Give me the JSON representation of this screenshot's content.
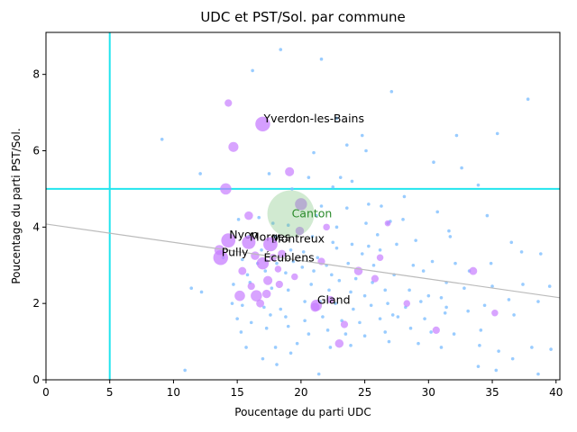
{
  "chart_data": {
    "type": "scatter",
    "title": "UDC et PST/Sol. par commune",
    "xlabel": "Poucentage du parti UDC",
    "ylabel": "Poucentage du parti PST/Sol.",
    "xlim": [
      0,
      40.3
    ],
    "ylim": [
      0,
      9.1
    ],
    "xticks": [
      0,
      5,
      10,
      15,
      20,
      25,
      30,
      35,
      40
    ],
    "yticks": [
      0,
      2,
      4,
      6,
      8
    ],
    "grid": false,
    "reference_lines": {
      "vertical_x": 5,
      "horizontal_y": 5,
      "color": "#22e5ee"
    },
    "regression_line": {
      "x": [
        0,
        40.3
      ],
      "y": [
        4.08,
        2.15
      ],
      "color": "#bbbbbb"
    },
    "canton": {
      "x": 19.2,
      "y": 4.35,
      "size": 1200,
      "color": "#7bc47b",
      "label": "Canton",
      "label_color": "#2a8a2a"
    },
    "labeled_points": [
      {
        "label": "Yverdon-les-Bains",
        "x": 17.0,
        "y": 6.7,
        "size": 120
      },
      {
        "label": "Nyon",
        "x": 14.3,
        "y": 3.65,
        "size": 110
      },
      {
        "label": "Morges",
        "x": 15.9,
        "y": 3.6,
        "size": 100
      },
      {
        "label": "Montreux",
        "x": 17.6,
        "y": 3.55,
        "size": 110
      },
      {
        "label": "Pully",
        "x": 13.7,
        "y": 3.2,
        "size": 120
      },
      {
        "label": "Écublens",
        "x": 17.0,
        "y": 3.05,
        "size": 80
      },
      {
        "label": "Gland",
        "x": 21.2,
        "y": 1.95,
        "size": 70
      }
    ],
    "purple_points": [
      {
        "x": 14.3,
        "y": 7.25,
        "size": 30
      },
      {
        "x": 14.7,
        "y": 6.1,
        "size": 55
      },
      {
        "x": 19.1,
        "y": 5.45,
        "size": 45
      },
      {
        "x": 14.1,
        "y": 5.0,
        "size": 70
      },
      {
        "x": 20.0,
        "y": 4.6,
        "size": 80
      },
      {
        "x": 15.9,
        "y": 4.3,
        "size": 40
      },
      {
        "x": 19.9,
        "y": 3.9,
        "size": 40
      },
      {
        "x": 13.6,
        "y": 3.4,
        "size": 55
      },
      {
        "x": 16.4,
        "y": 3.25,
        "size": 40
      },
      {
        "x": 18.5,
        "y": 3.3,
        "size": 35
      },
      {
        "x": 17.8,
        "y": 3.2,
        "size": 30
      },
      {
        "x": 15.4,
        "y": 2.85,
        "size": 35
      },
      {
        "x": 17.4,
        "y": 2.6,
        "size": 45
      },
      {
        "x": 18.3,
        "y": 2.5,
        "size": 30
      },
      {
        "x": 16.1,
        "y": 2.45,
        "size": 30
      },
      {
        "x": 15.2,
        "y": 2.2,
        "size": 60
      },
      {
        "x": 16.5,
        "y": 2.2,
        "size": 70
      },
      {
        "x": 17.3,
        "y": 2.25,
        "size": 40
      },
      {
        "x": 16.8,
        "y": 2.0,
        "size": 35
      },
      {
        "x": 22.3,
        "y": 2.1,
        "size": 30
      },
      {
        "x": 21.1,
        "y": 1.9,
        "size": 45
      },
      {
        "x": 24.5,
        "y": 2.85,
        "size": 40
      },
      {
        "x": 25.8,
        "y": 2.65,
        "size": 30
      },
      {
        "x": 26.2,
        "y": 3.2,
        "size": 25
      },
      {
        "x": 28.3,
        "y": 2.0,
        "size": 25
      },
      {
        "x": 30.6,
        "y": 1.3,
        "size": 30
      },
      {
        "x": 33.5,
        "y": 2.85,
        "size": 35
      },
      {
        "x": 35.2,
        "y": 1.75,
        "size": 25
      },
      {
        "x": 23.4,
        "y": 1.45,
        "size": 30
      },
      {
        "x": 23.0,
        "y": 0.95,
        "size": 40
      },
      {
        "x": 21.6,
        "y": 3.1,
        "size": 30
      },
      {
        "x": 19.5,
        "y": 2.7,
        "size": 25
      },
      {
        "x": 18.2,
        "y": 2.9,
        "size": 25
      },
      {
        "x": 26.8,
        "y": 4.1,
        "size": 20
      },
      {
        "x": 22.0,
        "y": 4.0,
        "size": 25
      }
    ],
    "blue_points": [
      [
        18.4,
        8.65
      ],
      [
        21.6,
        8.4
      ],
      [
        16.2,
        8.1
      ],
      [
        27.1,
        7.55
      ],
      [
        22.8,
        6.85
      ],
      [
        37.8,
        7.35
      ],
      [
        9.1,
        6.3
      ],
      [
        24.8,
        6.4
      ],
      [
        32.2,
        6.4
      ],
      [
        35.4,
        6.45
      ],
      [
        23.6,
        6.15
      ],
      [
        25.1,
        6.0
      ],
      [
        21.0,
        5.95
      ],
      [
        12.1,
        5.4
      ],
      [
        17.5,
        5.4
      ],
      [
        30.4,
        5.7
      ],
      [
        32.6,
        5.55
      ],
      [
        20.6,
        5.3
      ],
      [
        23.1,
        5.3
      ],
      [
        24.0,
        5.2
      ],
      [
        33.9,
        5.1
      ],
      [
        19.3,
        5.0
      ],
      [
        28.1,
        4.8
      ],
      [
        25.3,
        4.6
      ],
      [
        21.6,
        4.55
      ],
      [
        23.6,
        4.5
      ],
      [
        26.3,
        4.55
      ],
      [
        34.6,
        4.3
      ],
      [
        27.0,
        4.15
      ],
      [
        15.1,
        4.2
      ],
      [
        16.7,
        4.25
      ],
      [
        17.8,
        4.1
      ],
      [
        19.0,
        4.05
      ],
      [
        22.8,
        4.0
      ],
      [
        25.1,
        4.1
      ],
      [
        26.8,
        4.1
      ],
      [
        31.6,
        3.9
      ],
      [
        29.0,
        3.65
      ],
      [
        15.9,
        3.75
      ],
      [
        18.0,
        3.75
      ],
      [
        20.9,
        3.75
      ],
      [
        22.5,
        3.6
      ],
      [
        24.0,
        3.55
      ],
      [
        25.3,
        3.5
      ],
      [
        27.5,
        3.55
      ],
      [
        31.7,
        3.75
      ],
      [
        36.5,
        3.6
      ],
      [
        37.3,
        3.35
      ],
      [
        38.8,
        3.3
      ],
      [
        16.9,
        3.4
      ],
      [
        19.2,
        3.4
      ],
      [
        20.2,
        3.35
      ],
      [
        22.8,
        3.45
      ],
      [
        24.8,
        3.3
      ],
      [
        26.2,
        3.4
      ],
      [
        30.3,
        3.1
      ],
      [
        34.9,
        3.05
      ],
      [
        13.9,
        3.2
      ],
      [
        15.4,
        3.15
      ],
      [
        16.6,
        3.05
      ],
      [
        18.1,
        3.05
      ],
      [
        19.4,
        3.1
      ],
      [
        21.3,
        3.2
      ],
      [
        22.0,
        3.0
      ],
      [
        23.7,
        3.05
      ],
      [
        25.7,
        3.0
      ],
      [
        28.8,
        3.0
      ],
      [
        32.1,
        3.05
      ],
      [
        33.2,
        2.85
      ],
      [
        15.8,
        2.75
      ],
      [
        17.2,
        2.85
      ],
      [
        18.8,
        2.8
      ],
      [
        20.1,
        2.95
      ],
      [
        21.0,
        2.85
      ],
      [
        22.4,
        2.75
      ],
      [
        23.0,
        2.6
      ],
      [
        25.6,
        2.55
      ],
      [
        27.3,
        2.75
      ],
      [
        29.6,
        2.85
      ],
      [
        31.4,
        2.55
      ],
      [
        32.8,
        2.4
      ],
      [
        35.0,
        2.45
      ],
      [
        37.4,
        2.5
      ],
      [
        39.5,
        2.45
      ],
      [
        11.4,
        2.4
      ],
      [
        14.7,
        2.5
      ],
      [
        16.0,
        2.55
      ],
      [
        17.7,
        2.4
      ],
      [
        19.0,
        2.35
      ],
      [
        20.8,
        2.5
      ],
      [
        22.2,
        2.35
      ],
      [
        23.9,
        2.3
      ],
      [
        25.0,
        2.2
      ],
      [
        26.6,
        2.35
      ],
      [
        28.5,
        2.35
      ],
      [
        30.0,
        2.2
      ],
      [
        31.0,
        2.15
      ],
      [
        36.3,
        2.1
      ],
      [
        38.6,
        2.05
      ],
      [
        12.2,
        2.3
      ],
      [
        14.6,
        2.0
      ],
      [
        15.4,
        1.95
      ],
      [
        17.1,
        1.9
      ],
      [
        18.4,
        1.85
      ],
      [
        20.3,
        2.05
      ],
      [
        21.5,
        2.05
      ],
      [
        22.7,
        2.0
      ],
      [
        24.1,
        1.85
      ],
      [
        25.5,
        1.95
      ],
      [
        26.8,
        2.0
      ],
      [
        28.2,
        1.9
      ],
      [
        29.4,
        2.05
      ],
      [
        31.4,
        1.9
      ],
      [
        33.1,
        1.8
      ],
      [
        34.4,
        1.95
      ],
      [
        36.7,
        1.7
      ],
      [
        15.0,
        1.6
      ],
      [
        16.1,
        1.5
      ],
      [
        17.6,
        1.7
      ],
      [
        18.8,
        1.65
      ],
      [
        20.3,
        1.55
      ],
      [
        21.7,
        1.65
      ],
      [
        23.2,
        1.55
      ],
      [
        24.6,
        1.5
      ],
      [
        26.2,
        1.6
      ],
      [
        27.6,
        1.65
      ],
      [
        29.7,
        1.6
      ],
      [
        31.3,
        1.75
      ],
      [
        15.3,
        1.25
      ],
      [
        17.3,
        1.35
      ],
      [
        19.0,
        1.4
      ],
      [
        20.6,
        1.2
      ],
      [
        22.1,
        1.3
      ],
      [
        23.5,
        1.2
      ],
      [
        25.0,
        1.15
      ],
      [
        26.6,
        1.25
      ],
      [
        28.6,
        1.35
      ],
      [
        30.2,
        1.25
      ],
      [
        32.0,
        1.2
      ],
      [
        34.1,
        1.3
      ],
      [
        15.7,
        0.85
      ],
      [
        18.0,
        0.85
      ],
      [
        19.7,
        0.95
      ],
      [
        22.3,
        0.85
      ],
      [
        23.9,
        0.9
      ],
      [
        26.9,
        1.0
      ],
      [
        29.2,
        0.95
      ],
      [
        31.0,
        0.85
      ],
      [
        34.0,
        0.9
      ],
      [
        35.5,
        0.75
      ],
      [
        36.6,
        0.55
      ],
      [
        38.1,
        0.85
      ],
      [
        39.6,
        0.8
      ],
      [
        17.0,
        0.55
      ],
      [
        18.1,
        0.4
      ],
      [
        19.2,
        0.7
      ],
      [
        21.4,
        0.15
      ],
      [
        33.9,
        0.35
      ],
      [
        35.3,
        0.25
      ],
      [
        38.6,
        0.15
      ],
      [
        10.9,
        0.25
      ],
      [
        27.2,
        1.7
      ],
      [
        24.3,
        2.65
      ],
      [
        21.2,
        4.3
      ],
      [
        26.0,
        3.8
      ],
      [
        28.0,
        4.2
      ],
      [
        30.7,
        4.4
      ],
      [
        22.5,
        5.05
      ]
    ]
  }
}
